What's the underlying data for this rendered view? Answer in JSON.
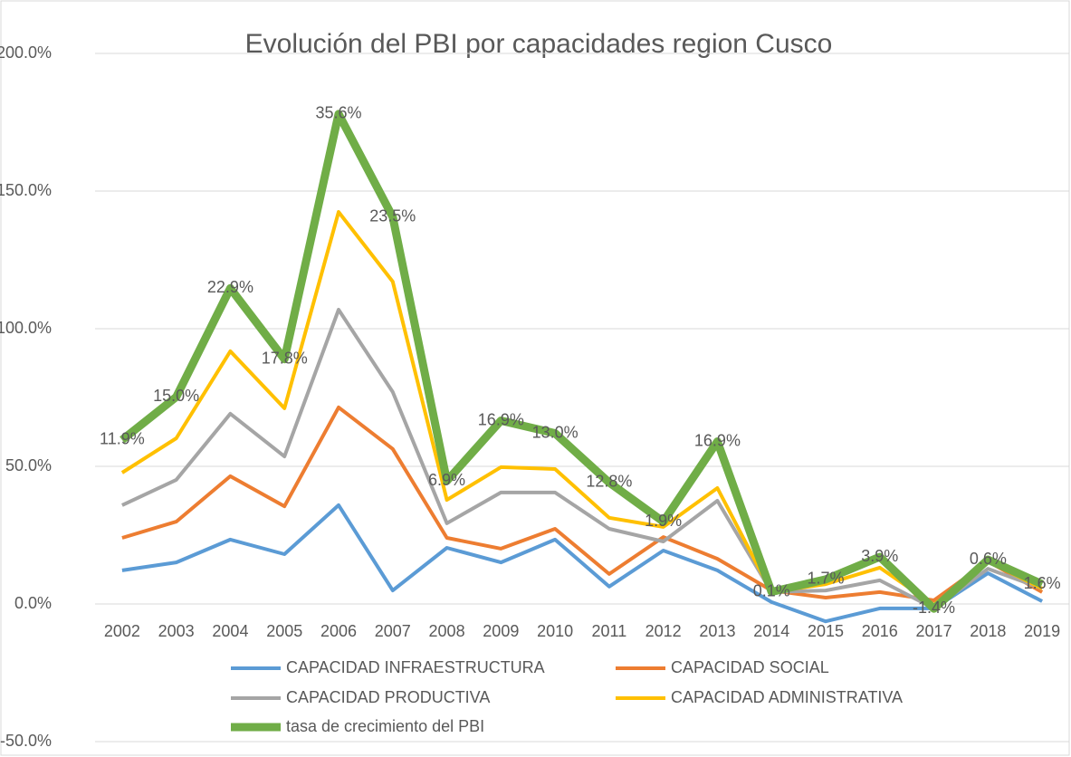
{
  "chart_data": {
    "type": "stacked-line",
    "title": "Evolución del PBI por capacidades region Cusco",
    "categories": [
      "2002",
      "2003",
      "2004",
      "2005",
      "2006",
      "2007",
      "2008",
      "2009",
      "2010",
      "2011",
      "2012",
      "2013",
      "2014",
      "2015",
      "2016",
      "2017",
      "2018",
      "2019"
    ],
    "series": [
      {
        "name": "CAPACIDAD INFRAESTRUCTURA",
        "color": "#5b9bd5",
        "values": [
          12.2,
          15.1,
          23.4,
          18.1,
          35.9,
          4.9,
          20.4,
          15.1,
          23.4,
          6.3,
          19.4,
          12.2,
          0.7,
          -6.3,
          -1.6,
          -1.6,
          11.2,
          1.0
        ]
      },
      {
        "name": "CAPACIDAD SOCIAL",
        "color": "#ed7d31",
        "values": [
          11.8,
          14.8,
          23.0,
          17.4,
          35.5,
          51.4,
          3.6,
          5.0,
          3.9,
          4.6,
          4.9,
          4.2,
          4.2,
          8.6,
          5.9,
          2.9,
          4.3,
          3.3
        ]
      },
      {
        "name": "CAPACIDAD PRODUCTIVA",
        "color": "#a5a5a5",
        "values": [
          11.9,
          15.2,
          22.7,
          18.1,
          35.5,
          20.7,
          5.3,
          20.4,
          13.2,
          16.4,
          -1.6,
          21.1,
          -0.6,
          2.6,
          4.3,
          -2.9,
          -2.7,
          1.3
        ]
      },
      {
        "name": "CAPACIDAD ADMINISTRATIVA",
        "color": "#ffc000",
        "values": [
          11.8,
          15.1,
          22.7,
          17.5,
          35.5,
          40.1,
          8.5,
          9.2,
          8.5,
          4.0,
          5.3,
          4.6,
          0,
          2.3,
          4.6,
          1.3,
          2.7,
          0
        ]
      },
      {
        "name": "tasa de crecimiento del PBI",
        "color": "#70ad47",
        "values": [
          11.9,
          15.0,
          22.9,
          17.8,
          35.6,
          23.5,
          6.9,
          16.9,
          13.0,
          12.8,
          1.9,
          16.9,
          0.1,
          1.7,
          3.9,
          -1.4,
          0.6,
          1.6
        ],
        "value_labels": [
          "11.9%",
          "15.0%",
          "22.9%",
          "17.8%",
          "35.6%",
          "23.5%",
          "6.9%",
          "16.9%",
          "13.0%",
          "12.8%",
          "1.9%",
          "16.9%",
          "0.1%",
          "1.7%",
          "3.9%",
          "-1.4%",
          "0.6%",
          "1.6%"
        ]
      }
    ],
    "ylim": [
      -50,
      200
    ],
    "yticks": [
      {
        "value": -50,
        "label": "-50.0%"
      },
      {
        "value": 0,
        "label": "0.0%"
      },
      {
        "value": 50,
        "label": "50.0%"
      },
      {
        "value": 100,
        "label": "100.0%"
      },
      {
        "value": 150,
        "label": "150.0%"
      },
      {
        "value": 200,
        "label": "200.0%"
      }
    ],
    "grid": true,
    "legend": "bottom"
  }
}
